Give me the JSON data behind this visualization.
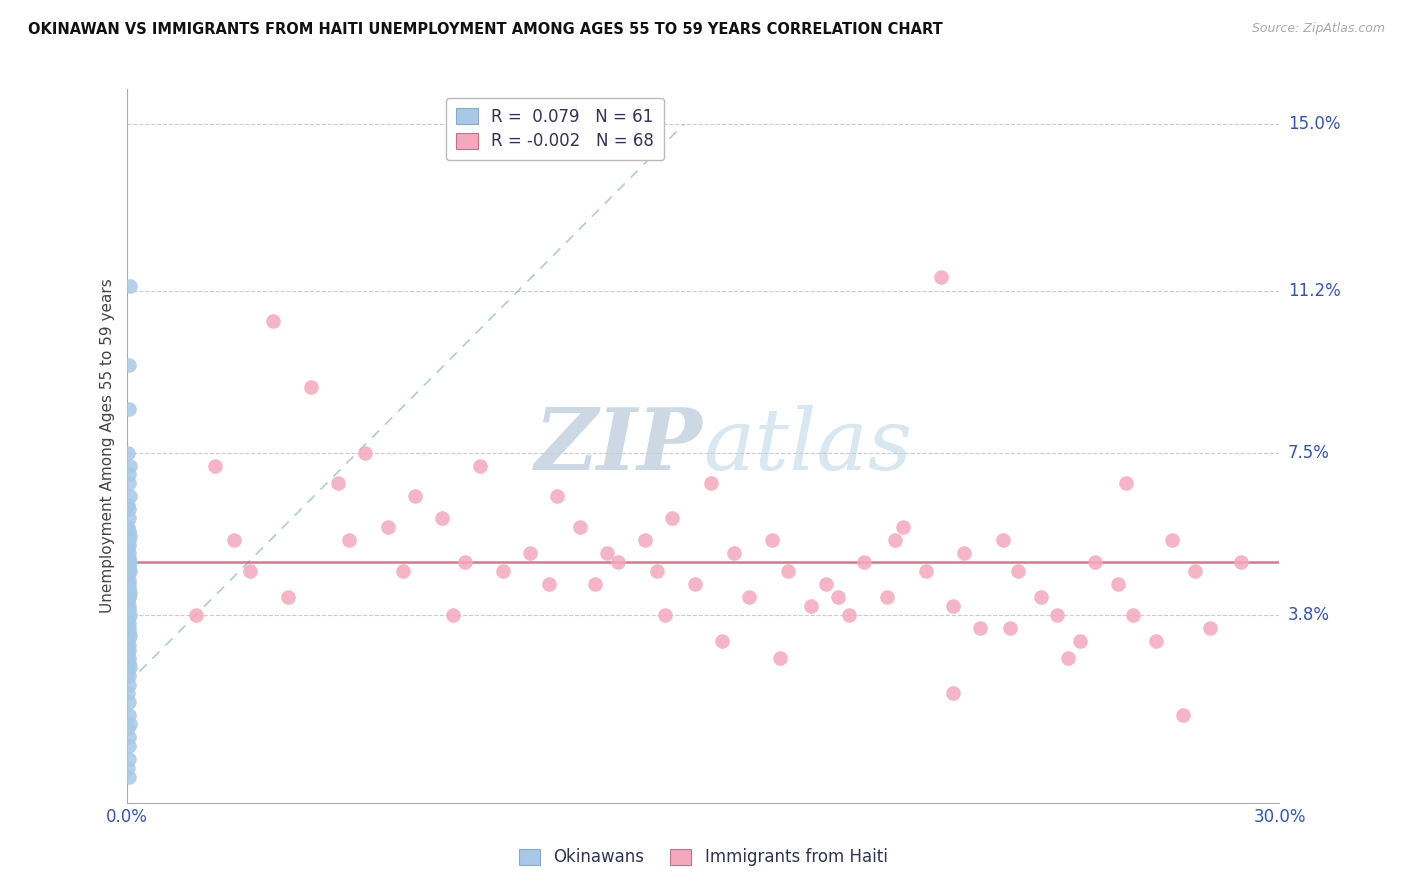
{
  "title": "OKINAWAN VS IMMIGRANTS FROM HAITI UNEMPLOYMENT AMONG AGES 55 TO 59 YEARS CORRELATION CHART",
  "source": "Source: ZipAtlas.com",
  "ylabel": "Unemployment Among Ages 55 to 59 years",
  "xlim": [
    0.0,
    0.3
  ],
  "ylim": [
    -0.005,
    0.158
  ],
  "ytick_values": [
    0.038,
    0.075,
    0.112,
    0.15
  ],
  "ytick_labels": [
    "3.8%",
    "7.5%",
    "11.2%",
    "15.0%"
  ],
  "xtick_values": [
    0.0,
    0.05,
    0.1,
    0.15,
    0.2,
    0.25,
    0.3
  ],
  "xtick_labels": [
    "0.0%",
    "",
    "",
    "",
    "",
    "",
    "30.0%"
  ],
  "legend_top_line1": "R =  0.079   N = 61",
  "legend_top_line2": "R = -0.002   N = 68",
  "legend_bottom": [
    "Okinawans",
    "Immigrants from Haiti"
  ],
  "blue_scatter_color": "#a8c8e8",
  "pink_scatter_color": "#f4a8bc",
  "blue_trend_color": "#8ab4d8",
  "pink_trend_color": "#e06080",
  "watermark_color": "#ccd8e4",
  "grid_color": "#cccccc",
  "bg_color": "#ffffff",
  "okinawan_x": [
    0.0008,
    0.0006,
    0.0007,
    0.0005,
    0.0009,
    0.0006,
    0.0007,
    0.0008,
    0.0005,
    0.0006,
    0.0007,
    0.0005,
    0.0006,
    0.0008,
    0.0007,
    0.0006,
    0.0005,
    0.0007,
    0.0006,
    0.0008,
    0.0005,
    0.0007,
    0.0006,
    0.0008,
    0.0005,
    0.0006,
    0.0007,
    0.0006,
    0.0005,
    0.0008,
    0.0007,
    0.0006,
    0.0005,
    0.0007,
    0.0006,
    0.0008,
    0.0005,
    0.0006,
    0.0007,
    0.0006,
    0.0008,
    0.0005,
    0.0007,
    0.0006,
    0.0005,
    0.0007,
    0.0006,
    0.0008,
    0.0005,
    0.0006,
    0.0007,
    0.0005,
    0.0006,
    0.0007,
    0.0008,
    0.0005,
    0.0006,
    0.0007,
    0.0006,
    0.0005,
    0.0007
  ],
  "okinawan_y": [
    0.113,
    0.095,
    0.085,
    0.075,
    0.072,
    0.07,
    0.068,
    0.065,
    0.063,
    0.062,
    0.06,
    0.058,
    0.057,
    0.056,
    0.055,
    0.054,
    0.053,
    0.052,
    0.051,
    0.05,
    0.05,
    0.049,
    0.048,
    0.048,
    0.047,
    0.046,
    0.045,
    0.044,
    0.043,
    0.043,
    0.042,
    0.042,
    0.041,
    0.04,
    0.039,
    0.038,
    0.037,
    0.036,
    0.035,
    0.034,
    0.033,
    0.032,
    0.031,
    0.03,
    0.029,
    0.028,
    0.027,
    0.026,
    0.025,
    0.024,
    0.022,
    0.02,
    0.018,
    0.015,
    0.013,
    0.012,
    0.01,
    0.008,
    0.005,
    0.003,
    0.001
  ],
  "haiti_x": [
    0.023,
    0.038,
    0.048,
    0.055,
    0.062,
    0.068,
    0.075,
    0.082,
    0.088,
    0.092,
    0.098,
    0.105,
    0.112,
    0.118,
    0.122,
    0.128,
    0.135,
    0.138,
    0.142,
    0.148,
    0.152,
    0.158,
    0.162,
    0.168,
    0.172,
    0.178,
    0.182,
    0.188,
    0.192,
    0.198,
    0.202,
    0.208,
    0.212,
    0.215,
    0.218,
    0.222,
    0.228,
    0.232,
    0.238,
    0.242,
    0.248,
    0.252,
    0.258,
    0.262,
    0.268,
    0.272,
    0.278,
    0.282,
    0.018,
    0.028,
    0.032,
    0.042,
    0.058,
    0.072,
    0.085,
    0.11,
    0.125,
    0.14,
    0.155,
    0.17,
    0.185,
    0.2,
    0.215,
    0.23,
    0.245,
    0.26,
    0.275,
    0.29
  ],
  "haiti_y": [
    0.072,
    0.105,
    0.09,
    0.068,
    0.075,
    0.058,
    0.065,
    0.06,
    0.05,
    0.072,
    0.048,
    0.052,
    0.065,
    0.058,
    0.045,
    0.05,
    0.055,
    0.048,
    0.06,
    0.045,
    0.068,
    0.052,
    0.042,
    0.055,
    0.048,
    0.04,
    0.045,
    0.038,
    0.05,
    0.042,
    0.058,
    0.048,
    0.115,
    0.04,
    0.052,
    0.035,
    0.055,
    0.048,
    0.042,
    0.038,
    0.032,
    0.05,
    0.045,
    0.038,
    0.032,
    0.055,
    0.048,
    0.035,
    0.038,
    0.055,
    0.048,
    0.042,
    0.055,
    0.048,
    0.038,
    0.045,
    0.052,
    0.038,
    0.032,
    0.028,
    0.042,
    0.055,
    0.02,
    0.035,
    0.028,
    0.068,
    0.015,
    0.05
  ],
  "trend_blue_x0": 0.0,
  "trend_blue_y0": 0.022,
  "trend_blue_x1": 0.145,
  "trend_blue_y1": 0.15,
  "trend_pink_y": 0.05
}
